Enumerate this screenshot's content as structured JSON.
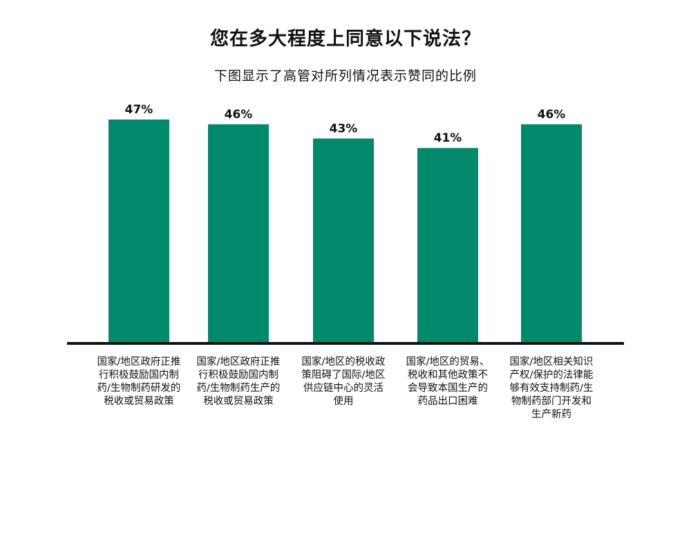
{
  "title": "您在多大程度上同意以下说法？",
  "subtitle": "下图显示了高管对所列情况表示赞同的比例",
  "colors": {
    "bar": "#00896b",
    "axis": "#111111",
    "text": "#111111"
  },
  "chart_data": {
    "type": "bar",
    "title": "您在多大程度上同意以下说法？",
    "subtitle": "下图显示了高管对所列情况表示赞同的比例",
    "categories": [
      "国家/地区政府正推行积极鼓励国内制药/生物制药研发的税收或贸易政策",
      "国家/地区政府正推行积极鼓励国内制药/生物制药生产的税收或贸易政策",
      "国家/地区的税收政策阻碍了国际/地区供应链中心的灵活使用",
      "国家/地区的贸易、税收和其他政策不会导致本国生产的药品出口困难",
      "国家/地区相关知识产权/保护的法律能够有效支持制药/生物制药部门开发和生产新药"
    ],
    "values": [
      47,
      46,
      43,
      41,
      46
    ],
    "value_labels": [
      "47%",
      "46%",
      "43%",
      "41%",
      "46%"
    ],
    "xlabel": "",
    "ylabel": "",
    "ylim": [
      0,
      47
    ],
    "grid": false,
    "legend": "none"
  }
}
